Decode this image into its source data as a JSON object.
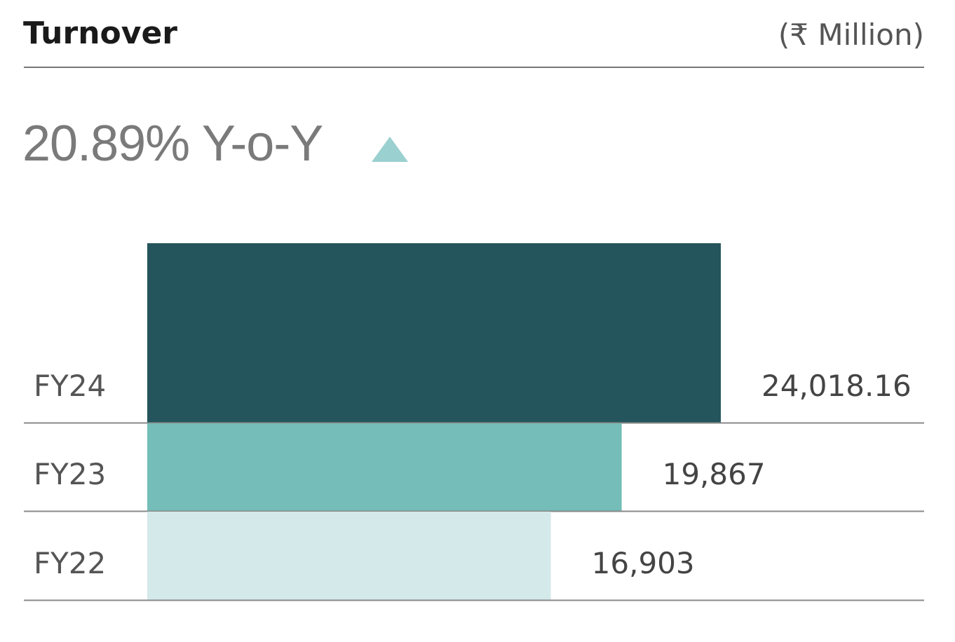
{
  "header": {
    "title": "Turnover",
    "unit": "(₹ Million)"
  },
  "growth": {
    "text": "20.89% Y-o-Y",
    "trend_icon": "triangle-up-icon",
    "trend_color": "#9bd0d0"
  },
  "chart_data": {
    "type": "bar",
    "orientation": "horizontal",
    "categories": [
      "FY24",
      "FY23",
      "FY22"
    ],
    "values": [
      24018.16,
      19867,
      16903
    ],
    "value_labels": [
      "24,018.16",
      "19,867",
      "16,903"
    ],
    "colors": [
      "#24555c",
      "#74bdb8",
      "#d4e9ea"
    ],
    "title": "Turnover",
    "unit": "(₹ Million)",
    "grid": false
  }
}
